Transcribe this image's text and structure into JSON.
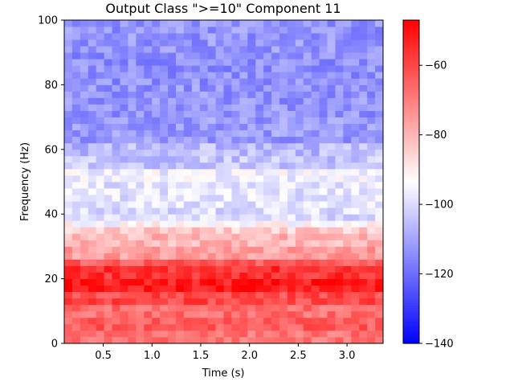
{
  "chart_data": {
    "type": "heatmap",
    "title": "Output Class \">=10\" Component 11",
    "xlabel": "Time (s)",
    "ylabel": "Frequency (Hz)",
    "xlim": [
      0.1,
      3.37
    ],
    "ylim": [
      0,
      100
    ],
    "x_ticks": [
      0.5,
      1.0,
      1.5,
      2.0,
      2.5,
      3.0
    ],
    "x_tick_labels": [
      "0.5",
      "1.0",
      "1.5",
      "2.0",
      "2.5",
      "3.0"
    ],
    "y_ticks": [
      0,
      20,
      40,
      60,
      80,
      100
    ],
    "y_tick_labels": [
      "0",
      "20",
      "40",
      "60",
      "80",
      "100"
    ],
    "grid": false,
    "colormap": "bwr",
    "colors": {
      "low": "#0000ff",
      "mid": "#ffffff",
      "high": "#ff0000"
    },
    "colorbar": {
      "vmin": -140,
      "vmax": -47,
      "ticks": [
        -140,
        -120,
        -100,
        -80,
        -60
      ],
      "tick_labels": [
        "−140",
        "−120",
        "−100",
        "−80",
        "−60"
      ]
    },
    "n_time_bins": 40,
    "n_freq_bins": 50,
    "frequency_band_profile": [
      {
        "freq_range": [
          0,
          4
        ],
        "value": -68
      },
      {
        "freq_range": [
          4,
          8
        ],
        "value": -64
      },
      {
        "freq_range": [
          8,
          12
        ],
        "value": -67
      },
      {
        "freq_range": [
          12,
          16
        ],
        "value": -60
      },
      {
        "freq_range": [
          16,
          20
        ],
        "value": -52
      },
      {
        "freq_range": [
          20,
          24
        ],
        "value": -56
      },
      {
        "freq_range": [
          24,
          26
        ],
        "value": -64
      },
      {
        "freq_range": [
          26,
          30
        ],
        "value": -76
      },
      {
        "freq_range": [
          30,
          34
        ],
        "value": -80
      },
      {
        "freq_range": [
          34,
          36
        ],
        "value": -84
      },
      {
        "freq_range": [
          36,
          38
        ],
        "value": -93
      },
      {
        "freq_range": [
          38,
          42
        ],
        "value": -100
      },
      {
        "freq_range": [
          42,
          46
        ],
        "value": -98
      },
      {
        "freq_range": [
          46,
          50
        ],
        "value": -98
      },
      {
        "freq_range": [
          50,
          54
        ],
        "value": -96
      },
      {
        "freq_range": [
          54,
          58
        ],
        "value": -104
      },
      {
        "freq_range": [
          58,
          62
        ],
        "value": -106
      },
      {
        "freq_range": [
          62,
          70
        ],
        "value": -112
      },
      {
        "freq_range": [
          70,
          80
        ],
        "value": -113
      },
      {
        "freq_range": [
          80,
          90
        ],
        "value": -114
      },
      {
        "freq_range": [
          90,
          100
        ],
        "value": -113
      }
    ]
  }
}
